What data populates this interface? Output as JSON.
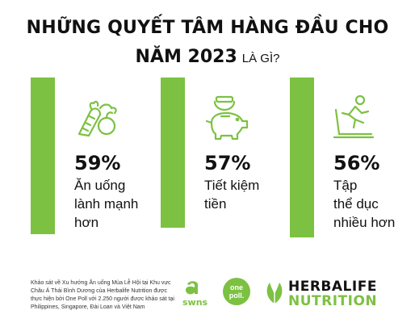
{
  "header": {
    "title_line1": "NHỮNG QUYẾT TÂM HÀNG ĐẦU CHO",
    "title_line2_bold": "NĂM 2023",
    "title_line2_small": "LÀ GÌ?"
  },
  "stats": [
    {
      "percent": "59%",
      "label_lines": [
        "Ăn uống",
        "lành mạnh",
        "hơn"
      ],
      "icon": "vegetables-icon"
    },
    {
      "percent": "57%",
      "label_lines": [
        "Tiết kiệm",
        "tiền"
      ],
      "icon": "piggy-bank-icon"
    },
    {
      "percent": "56%",
      "label_lines": [
        "Tập",
        "thể dục",
        "nhiều hơn"
      ],
      "icon": "treadmill-icon"
    }
  ],
  "footnote": "Khảo sát về Xu hướng Ăn uống Mùa Lễ Hội tại Khu vực Châu Á Thái Bình Dương của Herbalife Nutrition được thực hiện bởi One Poll với 2.250 người được khảo sát tại Philippines, Singapore, Đài Loan và Việt Nam",
  "logos": {
    "swns": "swns",
    "onepoll_line1": "one",
    "onepoll_line2": "poll.",
    "brand_line1": "HERBALIFE",
    "brand_line2": "NUTRITION"
  },
  "colors": {
    "accent": "#7cc142",
    "text": "#111111"
  }
}
